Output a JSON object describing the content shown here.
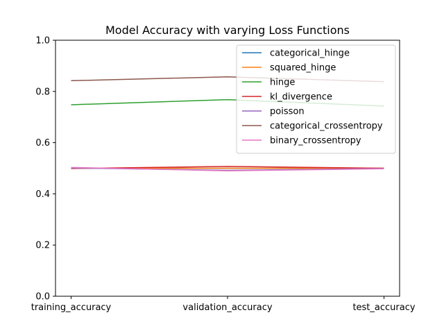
{
  "chart_data": {
    "type": "line",
    "title": "Model Accuracy with varying Loss Functions",
    "xlabel": "",
    "ylabel": "",
    "categories": [
      "training_accuracy",
      "validation_accuracy",
      "test_accuracy"
    ],
    "ylim": [
      0.0,
      1.0
    ],
    "yticks": [
      "0.0",
      "0.2",
      "0.4",
      "0.6",
      "0.8",
      "1.0"
    ],
    "grid": false,
    "legend_position": "top-right",
    "series": [
      {
        "name": "categorical_hinge",
        "color": "#1f77b4",
        "values": [
          0.5,
          0.5,
          0.5
        ]
      },
      {
        "name": "squared_hinge",
        "color": "#ff7f0e",
        "values": [
          0.5,
          0.5,
          0.5
        ]
      },
      {
        "name": "hinge",
        "color": "#2ca02c",
        "values": [
          0.748,
          0.768,
          0.743
        ]
      },
      {
        "name": "kl_divergence",
        "color": "#d62728",
        "values": [
          0.499,
          0.507,
          0.5
        ]
      },
      {
        "name": "poisson",
        "color": "#9467bd",
        "values": [
          0.501,
          0.492,
          0.499
        ]
      },
      {
        "name": "categorical_crossentropy",
        "color": "#8c564b",
        "values": [
          0.842,
          0.857,
          0.838
        ]
      },
      {
        "name": "binary_crossentropy",
        "color": "#e377c2",
        "values": [
          0.503,
          0.49,
          0.498
        ]
      }
    ]
  }
}
